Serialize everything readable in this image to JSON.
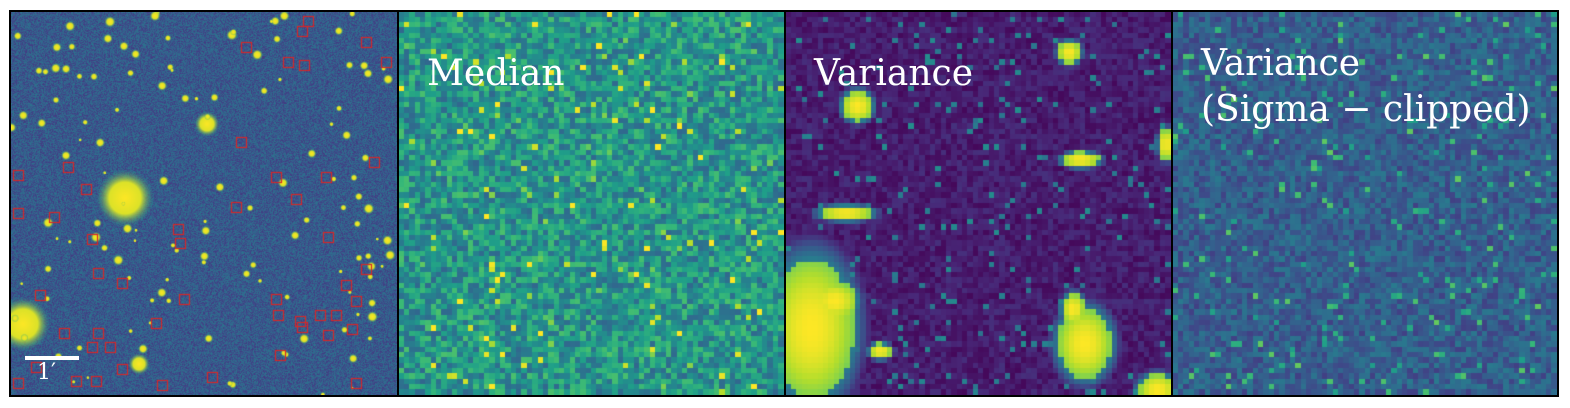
{
  "panels": [
    {
      "id": "p1",
      "label": "",
      "scale_bar_label": "1′",
      "colormap": "viridis",
      "marker_color": "#d62728"
    },
    {
      "id": "p2",
      "label": "Median",
      "colormap": "viridis"
    },
    {
      "id": "p3",
      "label": "Variance",
      "colormap": "viridis"
    },
    {
      "id": "p4",
      "label_line1": "Variance",
      "label_line2": "(Sigma − clipped)",
      "colormap": "viridis"
    }
  ]
}
